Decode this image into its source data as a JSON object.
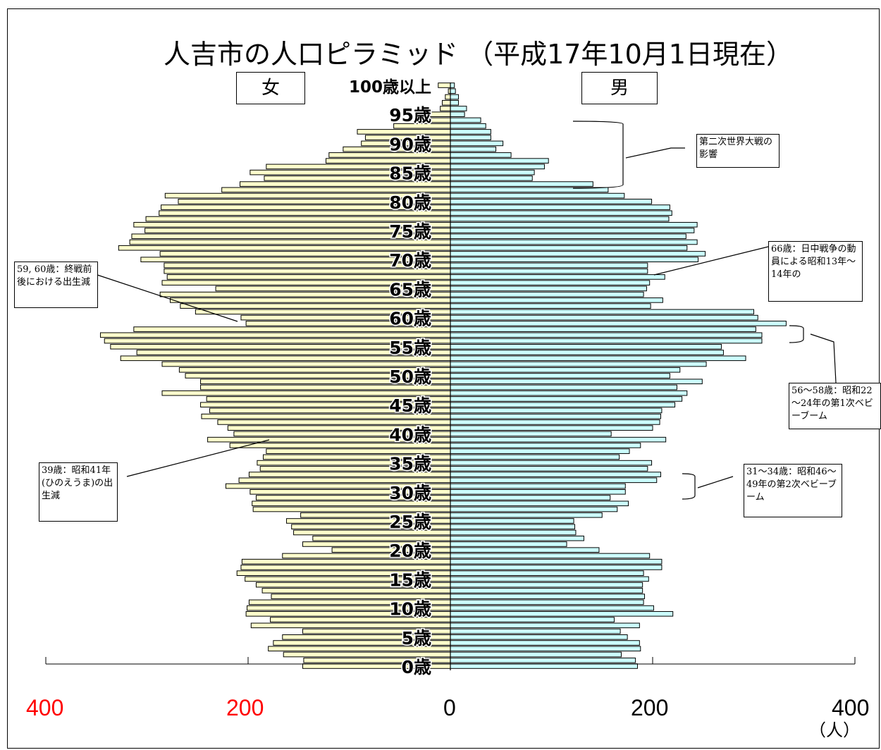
{
  "chart_data": {
    "type": "bar",
    "title": "人吉市の人口ピラミッド （平成17年10月1日現在）",
    "female_label": "女",
    "male_label": "男",
    "unit_label": "（人）",
    "age_labels": [
      "0歳",
      "5歳",
      "10歳",
      "15歳",
      "20歳",
      "25歳",
      "30歳",
      "35歳",
      "40歳",
      "45歳",
      "50歳",
      "55歳",
      "60歳",
      "65歳",
      "70歳",
      "75歳",
      "80歳",
      "85歳",
      "90歳",
      "95歳",
      "100歳以上"
    ],
    "x_ticks": {
      "left": [
        "400",
        "200"
      ],
      "center": "0",
      "right": [
        "200",
        "400"
      ]
    },
    "xlim": [
      0,
      400
    ],
    "colors": {
      "female": "#ffffcc",
      "male": "#ccffff",
      "left_tick": "#ff0000",
      "right_tick": "#000000"
    },
    "ages": [
      0,
      1,
      2,
      3,
      4,
      5,
      6,
      7,
      8,
      9,
      10,
      11,
      12,
      13,
      14,
      15,
      16,
      17,
      18,
      19,
      20,
      21,
      22,
      23,
      24,
      25,
      26,
      27,
      28,
      29,
      30,
      31,
      32,
      33,
      34,
      35,
      36,
      37,
      38,
      39,
      40,
      41,
      42,
      43,
      44,
      45,
      46,
      47,
      48,
      49,
      50,
      51,
      52,
      53,
      54,
      55,
      56,
      57,
      58,
      59,
      60,
      61,
      62,
      63,
      64,
      65,
      66,
      67,
      68,
      69,
      70,
      71,
      72,
      73,
      74,
      75,
      76,
      77,
      78,
      79,
      80,
      81,
      82,
      83,
      84,
      85,
      86,
      87,
      88,
      89,
      90,
      91,
      92,
      93,
      94,
      95,
      96,
      97,
      98,
      99,
      100
    ],
    "series": [
      {
        "name": "女",
        "values": [
          146,
          145,
          165,
          180,
          175,
          166,
          146,
          197,
          178,
          202,
          201,
          199,
          177,
          186,
          192,
          203,
          211,
          207,
          206,
          166,
          117,
          146,
          136,
          155,
          157,
          162,
          148,
          195,
          196,
          192,
          198,
          222,
          209,
          199,
          188,
          191,
          185,
          182,
          218,
          240,
          214,
          220,
          230,
          246,
          238,
          247,
          241,
          285,
          247,
          247,
          262,
          268,
          285,
          326,
          310,
          336,
          342,
          346,
          313,
          202,
          207,
          252,
          267,
          277,
          287,
          232,
          285,
          280,
          283,
          283,
          306,
          287,
          328,
          317,
          315,
          302,
          313,
          301,
          288,
          286,
          269,
          282,
          226,
          208,
          184,
          198,
          182,
          123,
          120,
          106,
          88,
          84,
          92,
          56,
          27,
          20,
          10,
          8,
          5,
          2,
          12
        ],
        "color": "#ffffcc"
      },
      {
        "name": "男",
        "values": [
          185,
          183,
          169,
          188,
          187,
          175,
          168,
          187,
          162,
          220,
          201,
          191,
          192,
          190,
          190,
          196,
          191,
          209,
          209,
          197,
          147,
          115,
          132,
          124,
          123,
          122,
          150,
          165,
          176,
          158,
          173,
          173,
          204,
          208,
          195,
          199,
          167,
          177,
          188,
          213,
          159,
          200,
          207,
          208,
          209,
          222,
          229,
          234,
          224,
          249,
          217,
          227,
          253,
          292,
          270,
          268,
          308,
          308,
          302,
          332,
          304,
          300,
          198,
          210,
          191,
          194,
          197,
          212,
          195,
          195,
          245,
          252,
          234,
          244,
          233,
          241,
          244,
          216,
          219,
          217,
          199,
          172,
          156,
          141,
          81,
          83,
          93,
          97,
          60,
          45,
          52,
          40,
          40,
          35,
          30,
          14,
          16,
          8,
          8,
          5,
          4
        ],
        "color": "#ccffff"
      }
    ]
  },
  "annotations": [
    {
      "id": "ww2",
      "text": "第二次世界大戦の影響"
    },
    {
      "id": "a66",
      "text": "66歳：日中戦争の動員による昭和13年～14年の"
    },
    {
      "id": "a5960",
      "text": "59, 60歳：終戦前後における出生減"
    },
    {
      "id": "boom1",
      "text": "56～58歳：昭和22～24年の第1次ベビーブーム"
    },
    {
      "id": "a39",
      "text": "39歳：昭和41年(ひのえうま)の出生減"
    },
    {
      "id": "boom2",
      "text": "31～34歳：昭和46～49年の第2次ベビーブーム"
    }
  ]
}
